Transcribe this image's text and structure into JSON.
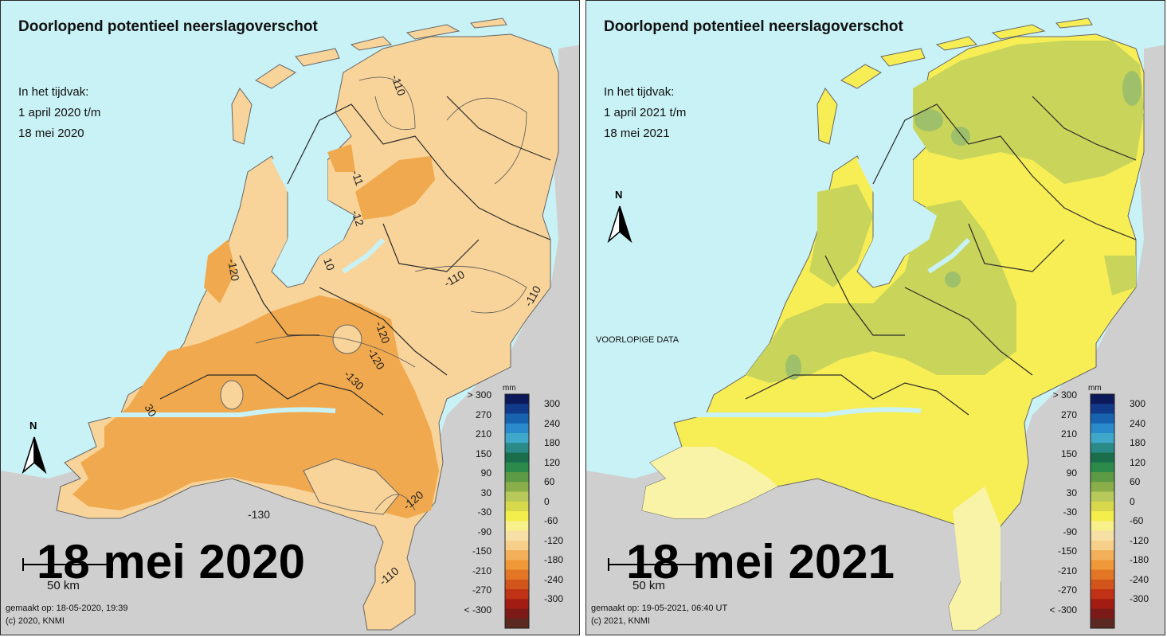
{
  "panels": [
    {
      "title": "Doorlopend potentieel neerslagoverschot",
      "period_lines": [
        "In het tijdvak:",
        "1 april 2020 t/m",
        "18 mei 2020"
      ],
      "big_date": "18 mei 2020",
      "scale_label": "50 km",
      "north": "N",
      "made_on": "gemaakt op: 18-05-2020, 19:39",
      "copyright": "(c) 2020, KNMI",
      "preliminary": "",
      "contour_labels": [
        "-110",
        "-110",
        "-110",
        "-110",
        "-120",
        "-120",
        "-120",
        "-120",
        "-130",
        "-130",
        "-11",
        "-12",
        "10",
        "30"
      ]
    },
    {
      "title": "Doorlopend potentieel neerslagoverschot",
      "period_lines": [
        "In het tijdvak:",
        "1 april 2021 t/m",
        "18 mei 2021"
      ],
      "big_date": "18 mei 2021",
      "scale_label": "50 km",
      "north": "N",
      "made_on": "gemaakt op: 19-05-2021, 06:40 UT",
      "copyright": "(c) 2021, KNMI",
      "preliminary": "VOORLOPIGE DATA",
      "contour_labels": []
    }
  ],
  "legend": {
    "unit": "mm",
    "left_ticks": [
      "> 300",
      "270",
      "210",
      "150",
      "90",
      "30",
      "-30",
      "-90",
      "-150",
      "-210",
      "-270",
      "< -300"
    ],
    "right_ticks": [
      "300",
      "240",
      "180",
      "120",
      "60",
      "0",
      "-60",
      "-120",
      "-180",
      "-240",
      "-300"
    ],
    "colors": [
      "#0c1a5c",
      "#123a8a",
      "#1763b0",
      "#2a8acb",
      "#3fa7c9",
      "#2a8a88",
      "#1a6e4c",
      "#2c8a4a",
      "#5c9a46",
      "#8aae4a",
      "#b6c95a",
      "#d8d84c",
      "#f3ee4c",
      "#f8f08a",
      "#f7e0a6",
      "#f6cf8a",
      "#f3b05a",
      "#ef9838",
      "#e27624",
      "#d2561c",
      "#c03216",
      "#a21c14",
      "#7c1a18",
      "#5a2a22"
    ]
  },
  "colors": {
    "sea": "#c9f2f6",
    "land_outside": "#cfcfcf",
    "border": "#2a2a2a",
    "map2020_light": "#f8d49a",
    "map2020_dark": "#f0a94e",
    "map2020_mid": "#f3bd6c",
    "map2021_yellow": "#f7ee55",
    "map2021_pale": "#f8f3a6",
    "map2021_green": "#c8d45a",
    "map2021_darkgreen": "#9fc06a"
  }
}
